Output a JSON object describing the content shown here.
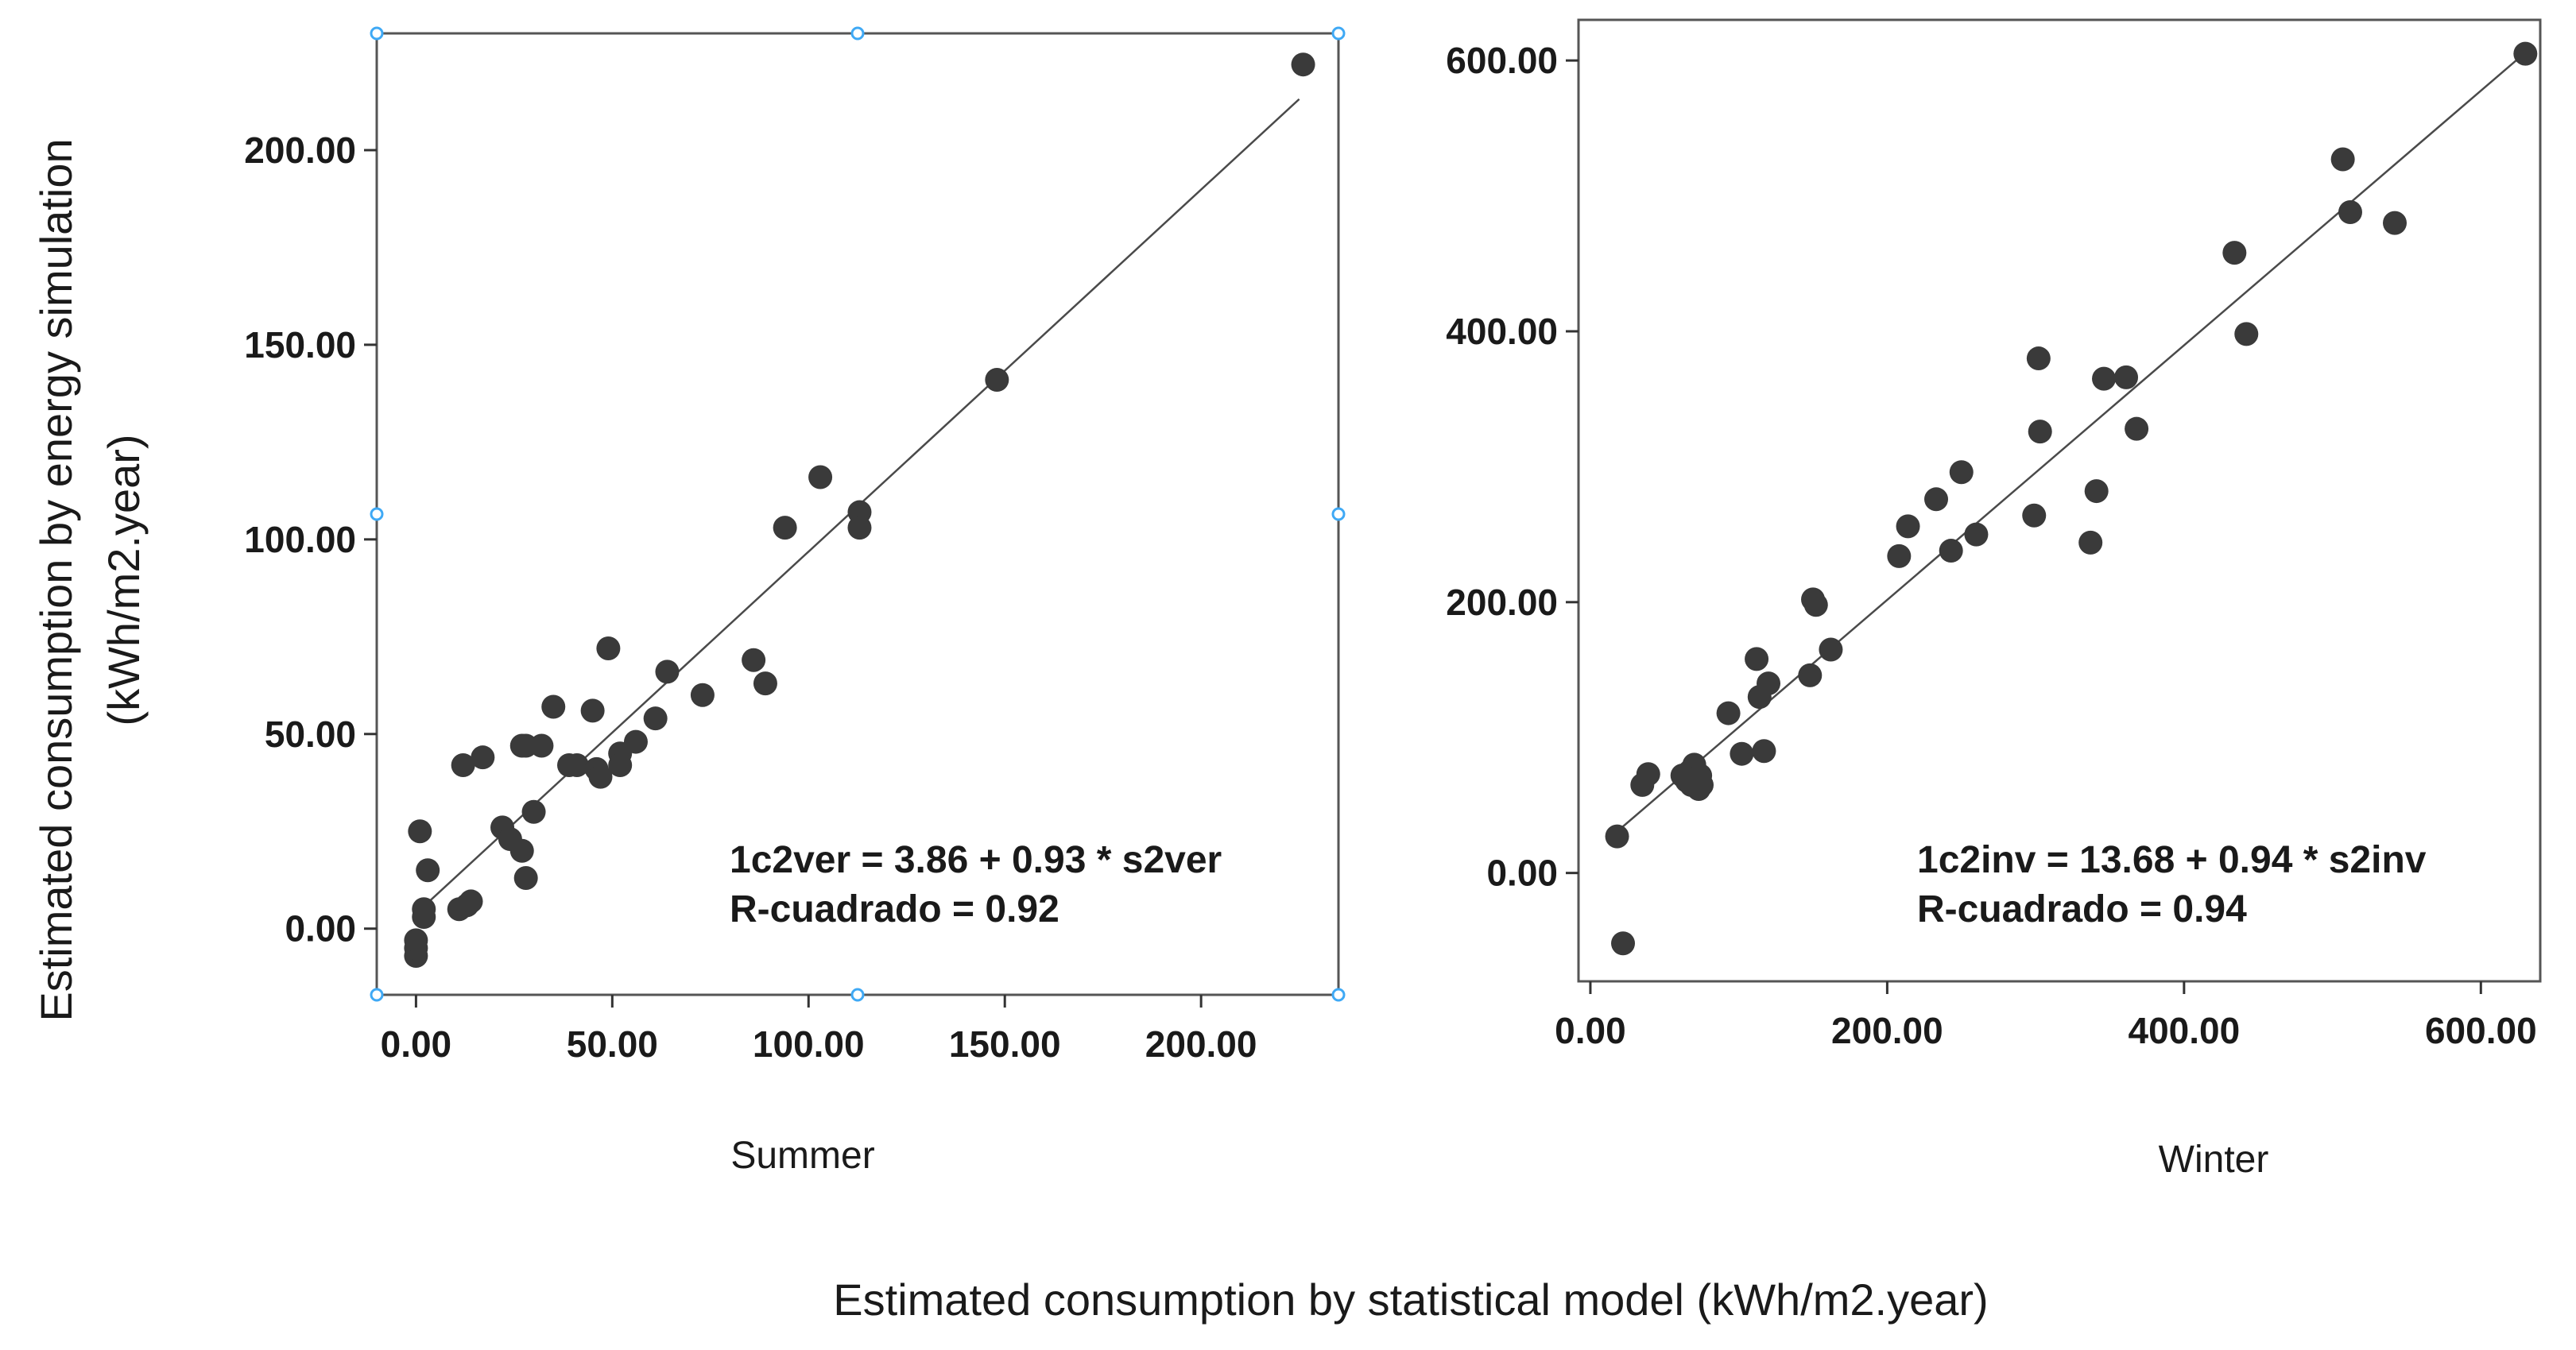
{
  "figure": {
    "ylabel_line1": "Estimated consumption by energy simulation",
    "ylabel_line2": "(kWh/m2.year)",
    "xlabel": "Estimated consumption by statistical model (kWh/m2.year)"
  },
  "chart_data": [
    {
      "type": "scatter",
      "title": "",
      "xlabel": "Summer",
      "ylabel": "",
      "xlim": [
        -10,
        235
      ],
      "ylim": [
        -17,
        230
      ],
      "xticks": [
        0,
        50,
        100,
        150,
        200
      ],
      "yticks": [
        0,
        50,
        100,
        150,
        200
      ],
      "xtick_labels": [
        "0.00",
        "50.00",
        "100.00",
        "150.00",
        "200.00"
      ],
      "ytick_labels": [
        "0.00",
        "50.00",
        "100.00",
        "150.00",
        "200.00"
      ],
      "grid": false,
      "selected": true,
      "marker_color": "#3a3a3a",
      "fit_line": {
        "intercept": 3.86,
        "slope": 0.93,
        "x_range": [
          2,
          225
        ]
      },
      "annotations": [
        "1c2ver = 3.86 + 0.93 * s2ver",
        "R-cuadrado = 0.92"
      ],
      "points": {
        "x": [
          0,
          0,
          0,
          1,
          2,
          2,
          3,
          11,
          13,
          14,
          12,
          17,
          22,
          24,
          27,
          27,
          28,
          28,
          30,
          32,
          35,
          39,
          41,
          45,
          46,
          47,
          49,
          52,
          52,
          56,
          61,
          64,
          73,
          86,
          89,
          94,
          103,
          113,
          113,
          148,
          226
        ],
        "y": [
          -7,
          -5,
          -3,
          25,
          5,
          3,
          15,
          5,
          6,
          7,
          42,
          44,
          26,
          23,
          20,
          47,
          13,
          47,
          30,
          47,
          57,
          42,
          42,
          56,
          41,
          39,
          72,
          45,
          42,
          48,
          54,
          66,
          60,
          69,
          63,
          103,
          116,
          107,
          103,
          141,
          222
        ]
      }
    },
    {
      "type": "scatter",
      "title": "",
      "xlabel": "Winter",
      "ylabel": "",
      "xlim": [
        -8,
        640
      ],
      "ylim": [
        -80,
        630
      ],
      "xticks": [
        0,
        200,
        400,
        600
      ],
      "yticks": [
        0,
        200,
        400,
        600
      ],
      "xtick_labels": [
        "0.00",
        "200.00",
        "400.00",
        "600.00"
      ],
      "ytick_labels": [
        "0.00",
        "200.00",
        "400.00",
        "600.00"
      ],
      "grid": false,
      "selected": false,
      "marker_color": "#3a3a3a",
      "fit_line": {
        "intercept": 13.68,
        "slope": 0.94,
        "x_range": [
          15,
          630
        ]
      },
      "annotations": [
        "1c2inv = 13.68 + 0.94 * s2inv",
        "R-cuadrado = 0.94"
      ],
      "points": {
        "x": [
          18,
          22,
          35,
          39,
          62,
          65,
          67,
          68,
          70,
          71,
          73,
          74,
          75,
          93,
          102,
          112,
          114,
          117,
          120,
          148,
          150,
          152,
          162,
          208,
          214,
          233,
          243,
          250,
          260,
          299,
          302,
          303,
          337,
          341,
          346,
          361,
          368,
          434,
          442,
          507,
          512,
          542,
          630
        ],
        "y": [
          27,
          -52,
          65,
          73,
          72,
          68,
          75,
          65,
          80,
          70,
          62,
          72,
          65,
          118,
          88,
          158,
          130,
          90,
          140,
          146,
          202,
          198,
          165,
          234,
          256,
          276,
          238,
          296,
          250,
          264,
          380,
          326,
          244,
          282,
          365,
          366,
          328,
          458,
          398,
          527,
          488,
          480,
          605
        ]
      }
    }
  ]
}
